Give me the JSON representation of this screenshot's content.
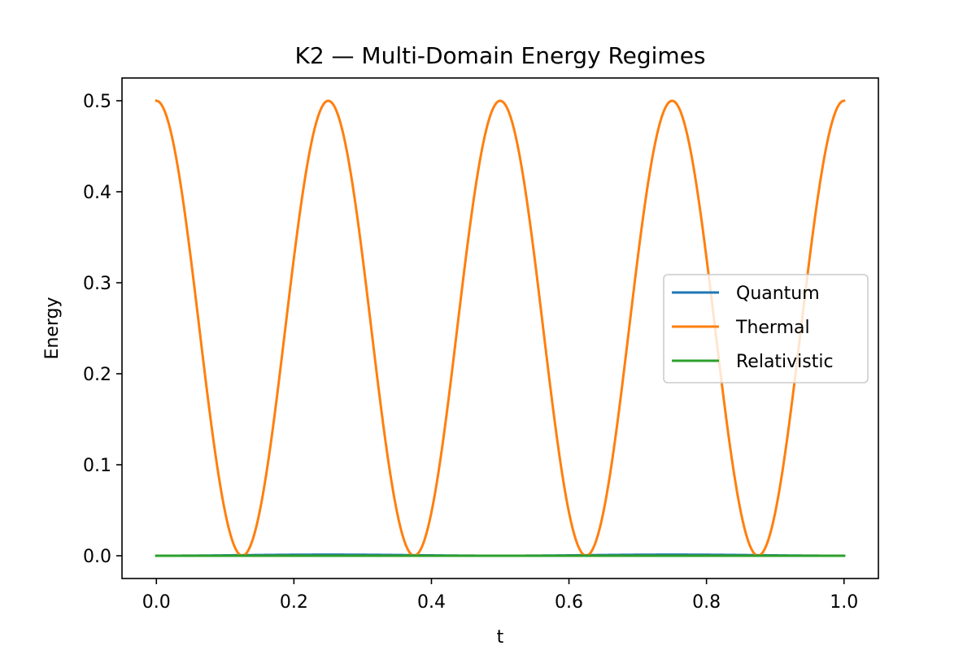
{
  "chart_data": {
    "type": "line",
    "title": "K2 — Multi-Domain Energy Regimes",
    "xlabel": "t",
    "ylabel": "Energy",
    "xlim": [
      -0.05,
      1.05
    ],
    "ylim": [
      -0.025,
      0.525
    ],
    "xticks": [
      0.0,
      0.2,
      0.4,
      0.6,
      0.8,
      1.0
    ],
    "xtick_labels": [
      "0.0",
      "0.2",
      "0.4",
      "0.6",
      "0.8",
      "1.0"
    ],
    "yticks": [
      0.0,
      0.1,
      0.2,
      0.3,
      0.4,
      0.5
    ],
    "ytick_labels": [
      "0.0",
      "0.1",
      "0.2",
      "0.3",
      "0.4",
      "0.5"
    ],
    "grid": false,
    "legend_position": "center-right",
    "series": [
      {
        "name": "Quantum",
        "color": "#1f77b4",
        "x": [
          0.0,
          0.125,
          0.25,
          0.375,
          0.5,
          0.625,
          0.75,
          0.875,
          1.0
        ],
        "y": [
          0.0,
          0.0008,
          0.0012,
          0.0008,
          0.0,
          0.0008,
          0.0012,
          0.0008,
          0.0
        ]
      },
      {
        "name": "Thermal",
        "color": "#ff7f0e",
        "x": [
          0.0,
          0.0625,
          0.125,
          0.1875,
          0.25,
          0.3125,
          0.375,
          0.4375,
          0.5,
          0.5625,
          0.625,
          0.6875,
          0.75,
          0.8125,
          0.875,
          0.9375,
          1.0
        ],
        "y": [
          0.5,
          0.25,
          0.0,
          0.25,
          0.5,
          0.25,
          0.0,
          0.25,
          0.5,
          0.25,
          0.0,
          0.25,
          0.5,
          0.25,
          0.0,
          0.25,
          0.5
        ]
      },
      {
        "name": "Relativistic",
        "color": "#2ca02c",
        "x": [
          0.0,
          0.25,
          0.5,
          0.75,
          1.0
        ],
        "y": [
          0.0,
          0.0,
          0.0,
          0.0,
          0.0
        ]
      }
    ]
  }
}
